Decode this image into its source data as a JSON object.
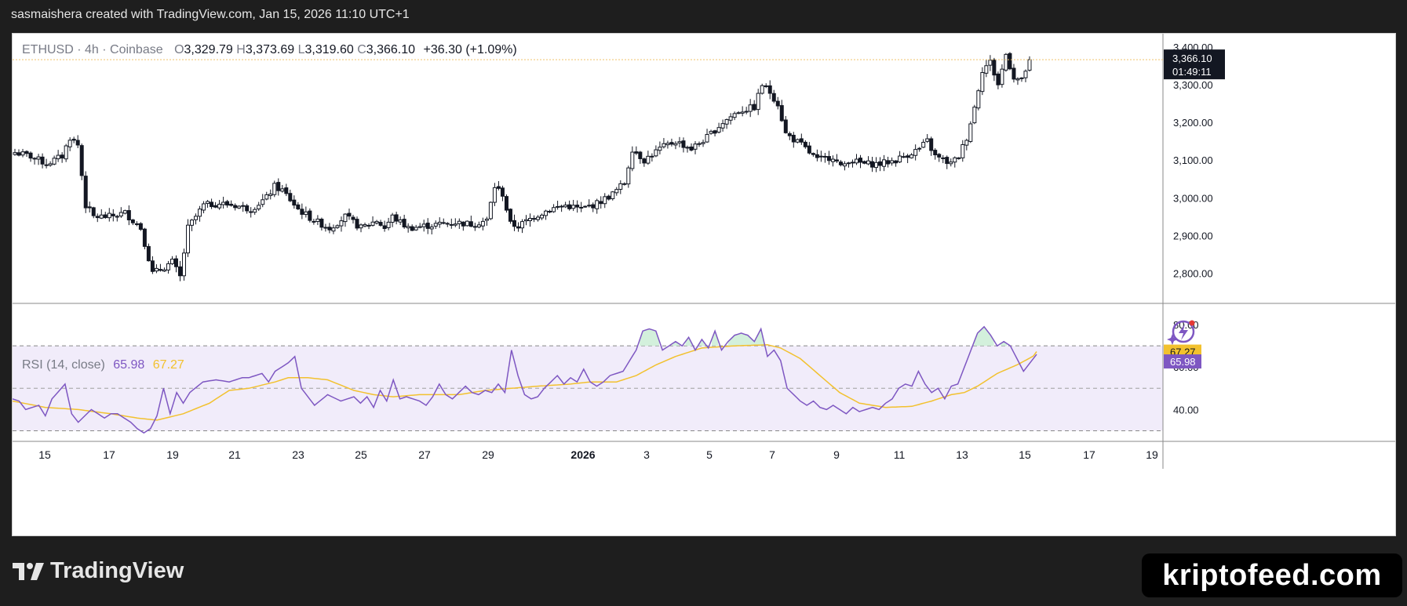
{
  "header": {
    "author_line": "sasmaishera created with TradingView.com, Jan 15, 2026 11:10 UTC+1"
  },
  "legend": {
    "symbol": "ETHUSD · 4h · Coinbase",
    "o_label": "O",
    "o_value": "3,329.79",
    "h_label": "H",
    "h_value": "3,373.69",
    "l_label": "L",
    "l_value": "3,319.60",
    "c_label": "C",
    "c_value": "3,366.10",
    "change": "+36.30 (+1.09%)"
  },
  "rsi_legend": {
    "label": "RSI (14, close)",
    "value": "65.98",
    "ma_value": "67.27"
  },
  "price_tag": {
    "price": "3,366.10",
    "countdown": "01:49:11"
  },
  "rsi_tags": {
    "ma": "67.27",
    "rsi": "65.98"
  },
  "branding": {
    "logo_text": "TradingView",
    "watermark": "kriptofeed.com"
  },
  "colors": {
    "rsi_line": "#7e57c2",
    "rsi_ma": "#f2c12e",
    "band_fill": "#f1ecfa",
    "price_line": "#f0c36a"
  },
  "chart_data": [
    {
      "type": "candlestick",
      "symbol": "ETHUSD",
      "interval": "4h",
      "exchange": "Coinbase",
      "ylim": [
        2720,
        3435
      ],
      "y_ticks": [
        2800,
        2900,
        3000,
        3100,
        3200,
        3300,
        3400
      ],
      "y_tick_labels": [
        "2,800.00",
        "2,900.00",
        "3,000.00",
        "3,100.00",
        "3,200.00",
        "3,300.00",
        "3,400.00"
      ],
      "x_tick_labels": [
        "15",
        "17",
        "19",
        "21",
        "23",
        "25",
        "27",
        "29",
        "2026",
        "3",
        "5",
        "7",
        "9",
        "11",
        "13",
        "15",
        "17",
        "19"
      ],
      "last_close": 3366.1,
      "anchors": [
        [
          0,
          3120
        ],
        [
          4,
          3110
        ],
        [
          8,
          3090
        ],
        [
          12,
          3110
        ],
        [
          14,
          3160
        ],
        [
          16,
          3140
        ],
        [
          18,
          2980
        ],
        [
          20,
          2950
        ],
        [
          24,
          2950
        ],
        [
          28,
          2960
        ],
        [
          32,
          2920
        ],
        [
          35,
          2800
        ],
        [
          37,
          2810
        ],
        [
          40,
          2830
        ],
        [
          42,
          2790
        ],
        [
          44,
          2920
        ],
        [
          48,
          2980
        ],
        [
          52,
          2985
        ],
        [
          56,
          2980
        ],
        [
          60,
          2970
        ],
        [
          64,
          3000
        ],
        [
          66,
          3030
        ],
        [
          68,
          3020
        ],
        [
          72,
          2970
        ],
        [
          76,
          2940
        ],
        [
          80,
          2920
        ],
        [
          84,
          2950
        ],
        [
          88,
          2920
        ],
        [
          92,
          2940
        ],
        [
          94,
          2920
        ],
        [
          96,
          2950
        ],
        [
          100,
          2920
        ],
        [
          104,
          2925
        ],
        [
          108,
          2930
        ],
        [
          112,
          2935
        ],
        [
          116,
          2930
        ],
        [
          120,
          2940
        ],
        [
          122,
          3030
        ],
        [
          124,
          3010
        ],
        [
          126,
          2930
        ],
        [
          128,
          2925
        ],
        [
          132,
          2950
        ],
        [
          136,
          2970
        ],
        [
          140,
          2980
        ],
        [
          144,
          2970
        ],
        [
          148,
          2985
        ],
        [
          152,
          3010
        ],
        [
          155,
          3040
        ],
        [
          157,
          3130
        ],
        [
          160,
          3100
        ],
        [
          164,
          3130
        ],
        [
          168,
          3150
        ],
        [
          172,
          3130
        ],
        [
          176,
          3160
        ],
        [
          180,
          3200
        ],
        [
          184,
          3230
        ],
        [
          188,
          3240
        ],
        [
          190,
          3300
        ],
        [
          192,
          3280
        ],
        [
          194,
          3250
        ],
        [
          196,
          3170
        ],
        [
          200,
          3140
        ],
        [
          204,
          3100
        ],
        [
          208,
          3110
        ],
        [
          210,
          3080
        ],
        [
          212,
          3100
        ],
        [
          216,
          3090
        ],
        [
          220,
          3090
        ],
        [
          224,
          3100
        ],
        [
          228,
          3120
        ],
        [
          230,
          3130
        ],
        [
          232,
          3150
        ],
        [
          234,
          3110
        ],
        [
          236,
          3100
        ],
        [
          238,
          3090
        ],
        [
          240,
          3110
        ],
        [
          242,
          3160
        ],
        [
          244,
          3240
        ],
        [
          246,
          3340
        ],
        [
          248,
          3360
        ],
        [
          250,
          3300
        ],
        [
          252,
          3380
        ],
        [
          254,
          3320
        ],
        [
          256,
          3310
        ],
        [
          258,
          3366.1
        ]
      ],
      "candle_count": 259,
      "series": [
        {
          "name": "ETHUSD"
        }
      ]
    },
    {
      "type": "line",
      "indicator": "RSI (14, close)",
      "ylim": [
        25,
        90
      ],
      "y_ticks": [
        40,
        60,
        80
      ],
      "y_tick_labels": [
        "40.00",
        "60.00",
        "80.00"
      ],
      "bands": {
        "upper": 70,
        "middle": 50,
        "lower": 30
      },
      "last_rsi": 65.98,
      "last_ma": 67.27,
      "rsi_anchors": [
        [
          0,
          45
        ],
        [
          2,
          44
        ],
        [
          4,
          40
        ],
        [
          8,
          42
        ],
        [
          10,
          37
        ],
        [
          12,
          45
        ],
        [
          16,
          52
        ],
        [
          18,
          38
        ],
        [
          20,
          34
        ],
        [
          24,
          40
        ],
        [
          28,
          36
        ],
        [
          30,
          38
        ],
        [
          32,
          38
        ],
        [
          34,
          36
        ],
        [
          36,
          34
        ],
        [
          38,
          31
        ],
        [
          40,
          29
        ],
        [
          42,
          31
        ],
        [
          44,
          37
        ],
        [
          46,
          50
        ],
        [
          48,
          38
        ],
        [
          50,
          48
        ],
        [
          52,
          43
        ],
        [
          54,
          48
        ],
        [
          58,
          53
        ],
        [
          62,
          54
        ],
        [
          66,
          53
        ],
        [
          70,
          55
        ],
        [
          72,
          55
        ],
        [
          76,
          57
        ],
        [
          78,
          53
        ],
        [
          80,
          58
        ],
        [
          84,
          62
        ],
        [
          86,
          65
        ],
        [
          88,
          50
        ],
        [
          90,
          46
        ],
        [
          92,
          42
        ],
        [
          96,
          47
        ],
        [
          100,
          44
        ],
        [
          104,
          46
        ],
        [
          106,
          43
        ],
        [
          108,
          46
        ],
        [
          110,
          41
        ],
        [
          112,
          49
        ],
        [
          114,
          44
        ],
        [
          116,
          54
        ],
        [
          118,
          45
        ],
        [
          120,
          46
        ],
        [
          124,
          44
        ],
        [
          126,
          42
        ],
        [
          128,
          46
        ],
        [
          130,
          52
        ],
        [
          132,
          47
        ],
        [
          134,
          45
        ],
        [
          136,
          48
        ],
        [
          138,
          51
        ],
        [
          140,
          48
        ],
        [
          142,
          47
        ],
        [
          144,
          49
        ],
        [
          146,
          48
        ],
        [
          148,
          52
        ],
        [
          150,
          48
        ],
        [
          152,
          68
        ],
        [
          154,
          56
        ],
        [
          156,
          47
        ],
        [
          158,
          45
        ],
        [
          160,
          46
        ],
        [
          162,
          50
        ],
        [
          164,
          53
        ],
        [
          166,
          56
        ],
        [
          168,
          52
        ],
        [
          170,
          55
        ],
        [
          172,
          53
        ],
        [
          174,
          59
        ],
        [
          176,
          53
        ],
        [
          178,
          51
        ],
        [
          180,
          53
        ],
        [
          182,
          56
        ],
        [
          184,
          57
        ],
        [
          186,
          58
        ],
        [
          188,
          63
        ],
        [
          190,
          68
        ],
        [
          192,
          77
        ],
        [
          194,
          78
        ],
        [
          196,
          77
        ],
        [
          198,
          68
        ],
        [
          200,
          70
        ],
        [
          202,
          72
        ],
        [
          204,
          70
        ],
        [
          206,
          74
        ],
        [
          208,
          68
        ],
        [
          210,
          73
        ],
        [
          212,
          69
        ],
        [
          214,
          77
        ],
        [
          216,
          68
        ],
        [
          218,
          72
        ],
        [
          220,
          75
        ],
        [
          222,
          76
        ],
        [
          224,
          75
        ],
        [
          226,
          72
        ],
        [
          228,
          78
        ],
        [
          230,
          65
        ],
        [
          232,
          68
        ],
        [
          234,
          63
        ],
        [
          236,
          50
        ],
        [
          238,
          47
        ],
        [
          240,
          44
        ],
        [
          242,
          42
        ],
        [
          244,
          44
        ],
        [
          246,
          41
        ],
        [
          248,
          40
        ],
        [
          250,
          42
        ],
        [
          252,
          40
        ],
        [
          254,
          38
        ],
        [
          256,
          41
        ],
        [
          258,
          39
        ],
        [
          260,
          40
        ],
        [
          262,
          41
        ],
        [
          264,
          40
        ],
        [
          266,
          43
        ],
        [
          268,
          45
        ],
        [
          270,
          50
        ],
        [
          272,
          52
        ],
        [
          274,
          51
        ],
        [
          276,
          58
        ],
        [
          278,
          52
        ],
        [
          280,
          48
        ],
        [
          282,
          50
        ],
        [
          284,
          45
        ],
        [
          286,
          51
        ],
        [
          288,
          52
        ],
        [
          290,
          60
        ],
        [
          292,
          68
        ],
        [
          294,
          76
        ],
        [
          296,
          79
        ],
        [
          298,
          75
        ],
        [
          300,
          70
        ],
        [
          302,
          72
        ],
        [
          304,
          70
        ],
        [
          306,
          64
        ],
        [
          308,
          58
        ],
        [
          310,
          62
        ],
        [
          312,
          66
        ]
      ],
      "ma_anchors": [
        [
          0,
          44
        ],
        [
          10,
          41
        ],
        [
          20,
          40
        ],
        [
          30,
          38
        ],
        [
          38,
          36
        ],
        [
          44,
          35
        ],
        [
          52,
          38
        ],
        [
          60,
          43
        ],
        [
          66,
          49
        ],
        [
          72,
          50
        ],
        [
          80,
          53
        ],
        [
          84,
          55
        ],
        [
          90,
          55
        ],
        [
          96,
          54
        ],
        [
          104,
          49
        ],
        [
          110,
          47
        ],
        [
          116,
          46
        ],
        [
          124,
          47
        ],
        [
          136,
          47
        ],
        [
          144,
          49
        ],
        [
          152,
          50
        ],
        [
          160,
          51
        ],
        [
          170,
          52
        ],
        [
          176,
          53
        ],
        [
          184,
          53
        ],
        [
          190,
          56
        ],
        [
          196,
          61
        ],
        [
          202,
          65
        ],
        [
          210,
          69
        ],
        [
          220,
          70
        ],
        [
          230,
          70.5
        ],
        [
          234,
          69
        ],
        [
          240,
          64
        ],
        [
          246,
          56
        ],
        [
          252,
          48
        ],
        [
          258,
          43
        ],
        [
          266,
          41
        ],
        [
          274,
          41.5
        ],
        [
          280,
          44
        ],
        [
          286,
          47
        ],
        [
          290,
          48
        ],
        [
          294,
          51
        ],
        [
          300,
          57
        ],
        [
          306,
          61
        ],
        [
          312,
          66
        ]
      ],
      "series": [
        {
          "name": "RSI (14, close)"
        }
      ]
    }
  ]
}
